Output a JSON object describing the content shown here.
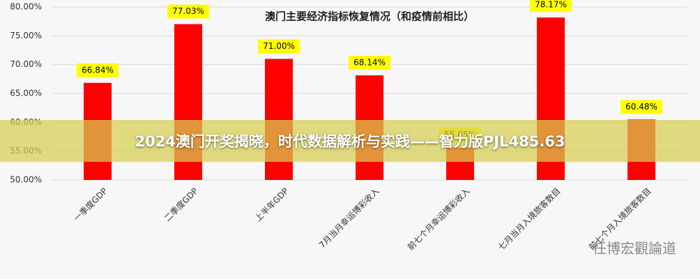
{
  "chart_data": {
    "type": "bar",
    "title": "澳门主要经济指标恢复情况（和疫情前相比）",
    "categories": [
      "一季度GDP",
      "二季度GDP",
      "上半年GDP",
      "7月当月幸运博彩收入",
      "前七个月幸运博彩收入",
      "七月当月入境旅客数目",
      "前七个月入境旅客数目"
    ],
    "values": [
      66.84,
      77.03,
      71.0,
      68.14,
      55.65,
      78.17,
      60.48
    ],
    "value_labels": [
      "66.84%",
      "77.03%",
      "71.00%",
      "68.14%",
      "55.65%",
      "78.17%",
      "60.48%"
    ],
    "color": "#ff0000",
    "ylim": [
      50,
      80
    ],
    "yticks": [
      {
        "value": 50,
        "label": "50.00%"
      },
      {
        "value": 55,
        "label": "55.00%"
      },
      {
        "value": 60,
        "label": "60.00%"
      },
      {
        "value": 65,
        "label": "65.00%"
      },
      {
        "value": 70,
        "label": "70.00%"
      },
      {
        "value": 75,
        "label": "75.00%"
      },
      {
        "value": 80,
        "label": "80.00%"
      }
    ],
    "grid": true
  },
  "banner": "2024澳门开奖揭晓，时代数据解析与实践——智力版PJL485.63",
  "watermark": "任博宏觀論道"
}
